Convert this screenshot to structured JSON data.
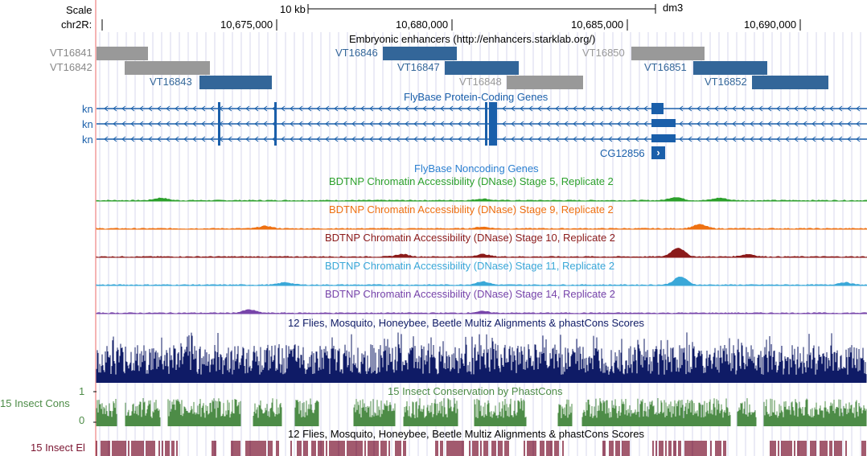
{
  "scale": {
    "label": "Scale",
    "size": "10 kb",
    "assembly": "dm3"
  },
  "position": {
    "chrom_label": "chr2R:",
    "ticks": [
      "10,675,000",
      "10,680,000",
      "10,685,000",
      "10,690,000"
    ]
  },
  "tracks": {
    "enhancers": {
      "title": "Embryonic enhancers (http://enhancers.starklab.org/)",
      "left_labels": [
        "VT16841",
        "VT16842"
      ],
      "items": [
        {
          "name": "VT16841",
          "color": "#999999"
        },
        {
          "name": "VT16842",
          "color": "#999999"
        },
        {
          "name": "VT16843",
          "color": "#336699"
        },
        {
          "name": "VT16846",
          "color": "#336699"
        },
        {
          "name": "VT16847",
          "color": "#336699"
        },
        {
          "name": "VT16848",
          "color": "#999999"
        },
        {
          "name": "VT16850",
          "color": "#999999"
        },
        {
          "name": "VT16851",
          "color": "#336699"
        },
        {
          "name": "VT16852",
          "color": "#336699"
        }
      ]
    },
    "protein_genes": {
      "title": "FlyBase Protein-Coding Genes",
      "color": "#1a5faa",
      "transcripts": [
        "kn",
        "kn",
        "kn"
      ],
      "extra_gene": "CG12856",
      "extra_gene_arrow": "›"
    },
    "noncoding": {
      "title": "FlyBase Noncoding Genes",
      "color": "#2a7fd0"
    },
    "dnase": [
      {
        "title": "BDTNP Chromatin Accessibility (DNase) Stage 5, Replicate 2",
        "color": "#2ca02c"
      },
      {
        "title": "BDTNP Chromatin Accessibility (DNase) Stage 9, Replicate 2",
        "color": "#ee7011"
      },
      {
        "title": "BDTNP Chromatin Accessibility (DNase) Stage 10, Replicate 2",
        "color": "#8b1a1a"
      },
      {
        "title": "BDTNP Chromatin Accessibility (DNase) Stage 11, Replicate 2",
        "color": "#3aa8d8"
      },
      {
        "title": "BDTNP Chromatin Accessibility (DNase) Stage 14, Replicate 2",
        "color": "#7744aa"
      }
    ],
    "multiz": {
      "title": "12 Flies, Mosquito, Honeybee, Beetle Multiz Alignments & phastCons Scores",
      "color": "#0f1b66"
    },
    "phastcons": {
      "title": "15 Insect Conservation by PhastCons",
      "left_label": "15 Insect Cons",
      "max": "1",
      "min": "0",
      "color": "#4d8c47"
    },
    "elements": {
      "title": "12 Flies, Mosquito, Honeybee, Beetle Multiz Alignments & phastCons Scores",
      "left_label": "15 Insect El",
      "color": "#7a1430"
    }
  },
  "colors": {
    "grid": "#d7d7ee",
    "highlight_line": "#f5b3b3"
  }
}
